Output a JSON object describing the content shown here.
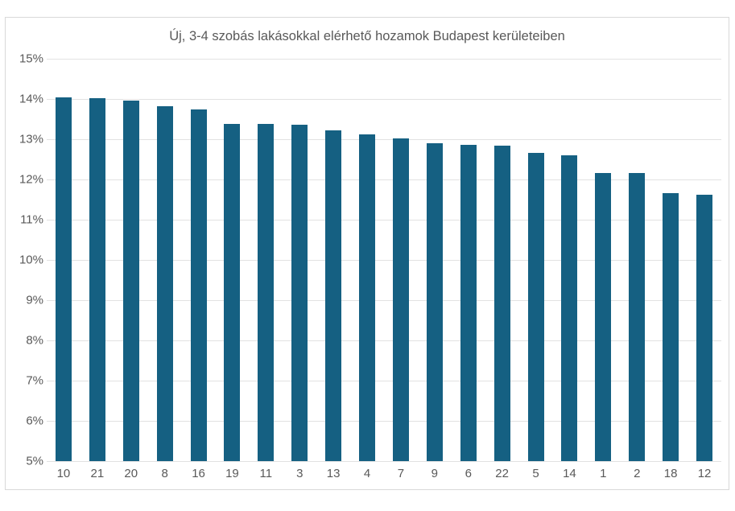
{
  "chart_data": {
    "type": "bar",
    "title": "Új, 3-4 szobás lakásokkal elérhető hozamok Budapest kerületeiben",
    "categories": [
      "10",
      "21",
      "20",
      "8",
      "16",
      "19",
      "11",
      "3",
      "13",
      "4",
      "7",
      "9",
      "6",
      "22",
      "5",
      "14",
      "1",
      "2",
      "18",
      "12"
    ],
    "values": [
      14.05,
      14.03,
      13.97,
      13.82,
      13.75,
      13.39,
      13.39,
      13.36,
      13.23,
      13.13,
      13.02,
      12.9,
      12.86,
      12.85,
      12.67,
      12.61,
      12.17,
      12.16,
      11.66,
      11.63
    ],
    "xlabel": "",
    "ylabel": "",
    "ylim": [
      5,
      15
    ],
    "ytick_step": 1,
    "ytick_labels": [
      "15%",
      "14%",
      "13%",
      "12%",
      "11%",
      "10%",
      "9%",
      "8%",
      "7%",
      "6%",
      "5%"
    ],
    "grid": true,
    "legend": "none",
    "bar_color": "#156082",
    "gridline_color": "#e2e2e2",
    "axis_text_color": "#595959",
    "title_color": "#595959",
    "frame_border_color": "#d9d9d9",
    "background_color": "#ffffff"
  }
}
